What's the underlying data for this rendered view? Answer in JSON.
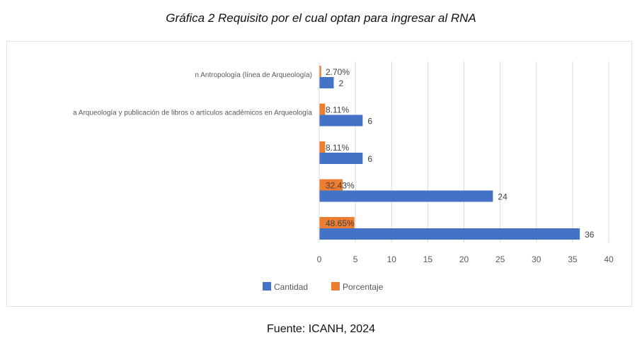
{
  "caption": "Gráfica 2 Requisito por el cual optan para ingresar al RNA",
  "source": "Fuente: ICANH, 2024",
  "chart_data": {
    "type": "bar",
    "orientation": "horizontal",
    "categories": [
      "n Antropología (línea de Arqueología)",
      "a Arqueología y publicación de libros o artículos académicos en Arqueología",
      "",
      "",
      ""
    ],
    "series": [
      {
        "name": "Cantidad",
        "color": "#4472c4",
        "values": [
          2,
          6,
          6,
          24,
          36
        ],
        "labels": [
          "2",
          "6",
          "6",
          "24",
          "36"
        ]
      },
      {
        "name": "Porcentaje",
        "color": "#ed7d31",
        "values": [
          0.027,
          0.0811,
          0.0811,
          0.3243,
          0.4865
        ],
        "labels": [
          "2.70%",
          "8.11%",
          "8.11%",
          "32.43%",
          "48.65%"
        ]
      }
    ],
    "xlim": [
      0,
      40
    ],
    "xticks": [
      "0",
      "5",
      "10",
      "15",
      "20",
      "25",
      "30",
      "35",
      "40"
    ],
    "grid": true,
    "legend": "bottom"
  }
}
